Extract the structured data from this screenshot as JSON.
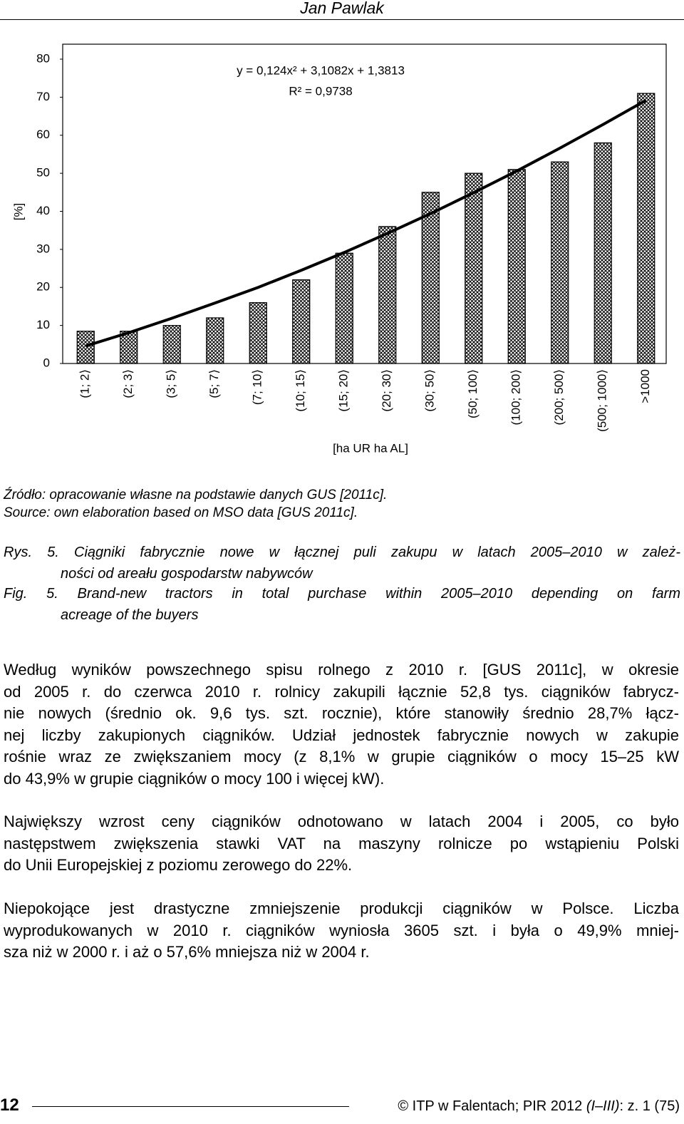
{
  "header": {
    "author": "Jan Pawlak"
  },
  "chart_data": {
    "type": "bar",
    "categories": [
      "(1; 2⟩",
      "(2; 3⟩",
      "(3; 5⟩",
      "(5; 7⟩",
      "(7; 10⟩",
      "(10; 15⟩",
      "(15; 20⟩",
      "(20; 30⟩",
      "(30; 50⟩",
      "(50; 100⟩",
      "(100; 200⟩",
      "(200; 500⟩",
      "(500; 1000⟩",
      ">1000"
    ],
    "values": [
      8.5,
      8.5,
      10,
      12,
      16,
      22,
      29,
      36,
      45,
      50,
      51,
      53,
      58,
      71
    ],
    "trend_values": [
      4.6,
      8.1,
      11.9,
      15.9,
      20.0,
      24.5,
      29.2,
      34.2,
      39.4,
      44.9,
      50.6,
      56.6,
      62.8,
      69.2
    ],
    "color": "#000000",
    "ylim": [
      0,
      80
    ],
    "yticks": [
      0,
      10,
      20,
      30,
      40,
      50,
      60,
      70,
      80
    ],
    "y_label": "[%]",
    "x_label": "[ha UR  ha AL]",
    "annotations": [
      "y = 0,124x² + 3,1082x + 1,3813",
      "R² = 0,9738"
    ]
  },
  "source": [
    "Źródło: opracowanie własne na podstawie danych GUS [2011c].",
    "Source: own elaboration based on MSO data [GUS 2011c]."
  ],
  "caption_pl": [
    "Rys. 5. Ciągniki fabrycznie nowe w łącznej puli zakupu w latach 2005–2010 w zależ-",
    "ności od areału gospodarstw nabywców"
  ],
  "caption_en": [
    "Fig. 5. Brand-new tractors in total purchase within 2005–2010 depending on farm",
    "acreage of the buyers"
  ],
  "paragraphs": [
    [
      "Według wyników powszechnego spisu rolnego z 2010 r. [GUS 2011c], w okresie",
      "od 2005 r. do czerwca 2010 r. rolnicy zakupili łącznie 52,8 tys. ciągników fabrycz-",
      "nie nowych (średnio ok. 9,6 tys. szt. rocznie), które stanowiły średnio 28,7% łącz-",
      "nej liczby zakupionych ciągników. Udział jednostek fabrycznie nowych w zakupie",
      "rośnie wraz ze zwiększaniem mocy (z 8,1% w grupie ciągników o mocy 15–25 kW",
      "do 43,9% w grupie ciągników o mocy 100 i więcej kW)."
    ],
    [
      "Największy wzrost ceny ciągników odnotowano w latach 2004 i 2005, co było",
      "następstwem zwiększenia stawki VAT na maszyny rolnicze po wstąpieniu Polski",
      "do Unii Europejskiej z poziomu zerowego do 22%."
    ],
    [
      "Niepokojące jest drastyczne zmniejszenie produkcji ciągników w Polsce. Liczba",
      "wyprodukowanych w 2010 r. ciągników wyniosła 3605 szt. i była o 49,9% mniej-",
      "sza niż w 2000 r. i aż o 57,6% mniejsza niż w 2004 r."
    ]
  ],
  "footer": {
    "page": "12",
    "journal": [
      "© ITP w Falentach; PIR 2012 ",
      "(I–III)",
      ": z. 1 (75)"
    ]
  }
}
